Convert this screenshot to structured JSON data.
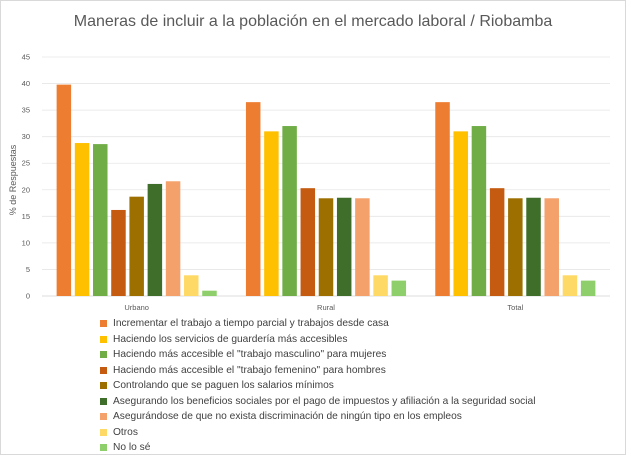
{
  "chart_data": {
    "type": "bar",
    "title": "Maneras de incluir a la población en el mercado laboral / Riobamba",
    "xlabel": "",
    "ylabel": "% de Respuestas",
    "ylim": [
      0,
      45
    ],
    "yticks": [
      0,
      5,
      10,
      15,
      20,
      25,
      30,
      35,
      40,
      45
    ],
    "grid": true,
    "legend_position": "bottom",
    "categories": [
      "Urbano",
      "Rural",
      "Total"
    ],
    "series": [
      {
        "name": "Incrementar el trabajo a tiempo parcial y trabajos desde casa",
        "color": "#ED7D31",
        "values": [
          39.8,
          36.5,
          36.5
        ]
      },
      {
        "name": "Haciendo los servicios de guardería más accesibles",
        "color": "#FFC000",
        "values": [
          28.8,
          31.0,
          31.0
        ]
      },
      {
        "name": "Haciendo más accesible el \"trabajo masculino\" para mujeres",
        "color": "#70AD47",
        "values": [
          28.6,
          32.0,
          32.0
        ]
      },
      {
        "name": "Haciendo más accesible el \"trabajo femenino\" para hombres",
        "color": "#C55A11",
        "values": [
          16.2,
          20.3,
          20.3
        ]
      },
      {
        "name": "Controlando que se paguen los salarios mínimos",
        "color": "#9C6F00",
        "values": [
          18.7,
          18.4,
          18.4
        ]
      },
      {
        "name": "Asegurando los beneficios sociales por el pago de impuestos y afiliación a la seguridad social",
        "color": "#3F6E2A",
        "values": [
          21.1,
          18.5,
          18.5
        ]
      },
      {
        "name": "Asegurándose de que no exista discriminación de ningún tipo en los empleos",
        "color": "#F4A16B",
        "values": [
          21.6,
          18.4,
          18.4
        ]
      },
      {
        "name": "Otros",
        "color": "#FFD966",
        "values": [
          3.9,
          3.9,
          3.9
        ]
      },
      {
        "name": "No lo sé",
        "color": "#8FCF6B",
        "values": [
          1.0,
          2.9,
          2.9
        ]
      }
    ]
  }
}
